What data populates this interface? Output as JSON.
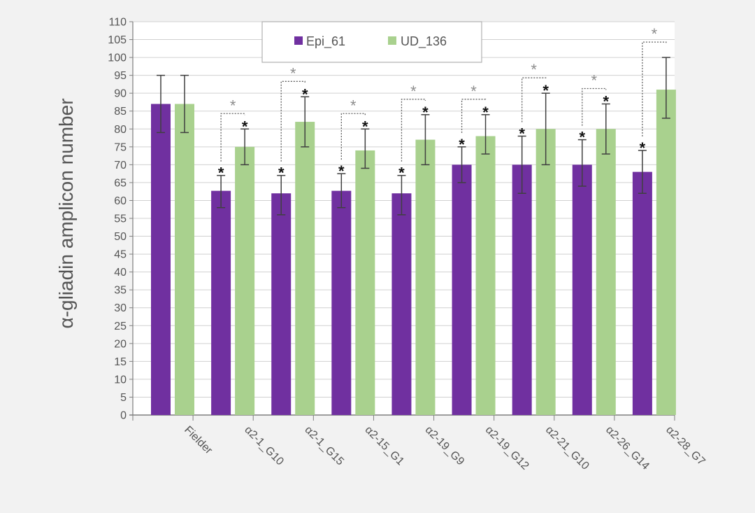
{
  "chart_data": {
    "type": "bar",
    "ylabel": "α-gliadin amplicon number",
    "xlabel": "",
    "title": "",
    "ylim": [
      0,
      110
    ],
    "ytick_step": 5,
    "grid": true,
    "legend_position": "top-center",
    "categories": [
      "Fielder",
      "α2-1_G10",
      "α2-1_G15",
      "α2-15_G1",
      "α2-19_G9",
      "α2-19_G12",
      "α2-21_G10",
      "α2-26_G14",
      "α2-28_G7"
    ],
    "series": [
      {
        "name": "Epi_61",
        "color": "#7030a0",
        "values": [
          87,
          62.7,
          62,
          62.7,
          62,
          70,
          70,
          70,
          68
        ],
        "error_low": [
          79,
          58,
          56,
          58,
          56,
          65,
          62,
          64,
          62
        ],
        "error_high": [
          95,
          67,
          67,
          67.5,
          67,
          75,
          78,
          77,
          74
        ],
        "significant": [
          false,
          true,
          true,
          true,
          true,
          true,
          true,
          true,
          true
        ]
      },
      {
        "name": "UD_136",
        "color": "#a9d18e",
        "values": [
          87,
          75,
          82,
          74,
          77,
          78,
          80,
          80,
          91
        ],
        "error_low": [
          79,
          70,
          75,
          69,
          70,
          73,
          70,
          73,
          83
        ],
        "error_high": [
          95,
          80,
          89,
          80,
          84,
          84,
          90,
          87,
          100
        ],
        "significant": [
          false,
          true,
          true,
          true,
          true,
          true,
          true,
          true,
          false
        ]
      }
    ],
    "pair_significant": [
      false,
      true,
      true,
      true,
      true,
      true,
      true,
      true,
      true
    ],
    "significance_marker": "*"
  }
}
